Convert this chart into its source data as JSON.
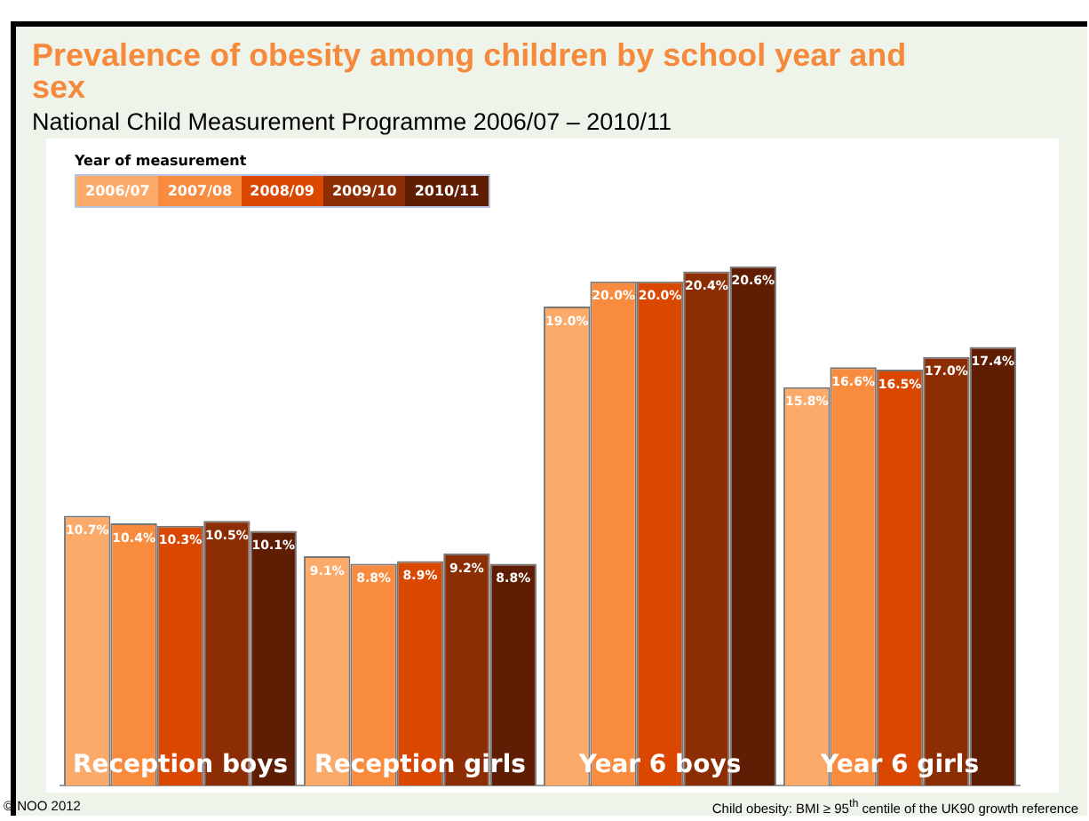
{
  "chart_data": {
    "type": "bar",
    "title": "Prevalence of obesity among children by school year and sex",
    "subtitle": "National Child Measurement Programme 2006/07 – 2010/11",
    "legend_title": "Year of measurement",
    "legend": "top left",
    "grid": false,
    "categories": [
      "Reception boys",
      "Reception girls",
      "Year 6 boys",
      "Year 6 girls"
    ],
    "series": [
      {
        "name": "2006/07",
        "color": "#fbaa6a",
        "values": [
          10.7,
          9.1,
          19.0,
          15.8
        ],
        "value_labels": [
          "10.7%",
          "9.1%",
          "19.0%",
          "15.8%"
        ]
      },
      {
        "name": "2007/08",
        "color": "#f98b3e",
        "values": [
          10.4,
          8.8,
          20.0,
          16.6
        ],
        "value_labels": [
          "10.4%",
          "8.8%",
          "20.0%",
          "16.6%"
        ]
      },
      {
        "name": "2008/09",
        "color": "#d94701",
        "values": [
          10.3,
          8.9,
          20.0,
          16.5
        ],
        "value_labels": [
          "10.3%",
          "8.9%",
          "20.0%",
          "16.5%"
        ]
      },
      {
        "name": "2009/10",
        "color": "#8c2d04",
        "values": [
          10.5,
          9.2,
          20.4,
          17.0
        ],
        "value_labels": [
          "10.5%",
          "9.2%",
          "20.4%",
          "17.0%"
        ]
      },
      {
        "name": "2010/11",
        "color": "#5f1e04",
        "values": [
          10.1,
          8.8,
          20.6,
          17.4
        ],
        "value_labels": [
          "10.1%",
          "8.8%",
          "20.6%",
          "17.4%"
        ]
      }
    ],
    "annotations": [
      "© NOO 2012",
      "Child obesity: BMI ≥ 95$^{th}$ centile of the UK90 growth reference"
    ]
  }
}
